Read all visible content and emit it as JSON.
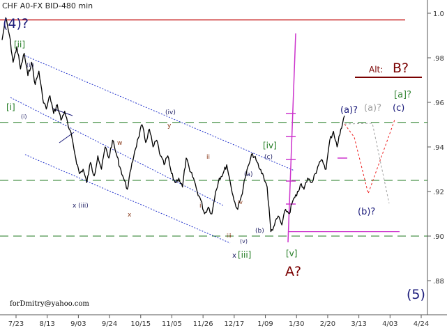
{
  "header": {
    "title": "CHF A0-FX BID-480 min"
  },
  "footer": {
    "email": "forDmitry@yahoo.com"
  },
  "colors": {
    "price": "#000000",
    "green": "#1f7a1f",
    "navy": "#1a1a7a",
    "red": "#c00000",
    "darkred": "#7a0000",
    "magenta": "#cc33cc",
    "blue_dotted": "#2233cc",
    "gray": "#a0a0a0",
    "wave_small": "#222266",
    "wave_brown": "#8a3a1a"
  },
  "chart_data": {
    "type": "line",
    "title": "CHF A0-FX BID-480 min",
    "xlabel": "",
    "ylabel": "",
    "ylim": [
      0.865,
      1.005
    ],
    "y_ticks": [
      "1.0",
      ".98",
      ".96",
      ".94",
      ".92",
      ".90",
      ".88"
    ],
    "x_ticks": [
      "7/23",
      "8/13",
      "9/03",
      "9/24",
      "10/15",
      "11/05",
      "11/26",
      "12/17",
      "1/09",
      "1/30",
      "2/20",
      "3/13",
      "4/03",
      "4/24"
    ],
    "grid": false,
    "series": [
      {
        "values": [
          0.988,
          0.998,
          0.99,
          0.978,
          0.985,
          0.975,
          0.982,
          0.972,
          0.978,
          0.968,
          0.974,
          0.962,
          0.957,
          0.963,
          0.955,
          0.959,
          0.952,
          0.956,
          0.949,
          0.944,
          0.935,
          0.928,
          0.93,
          0.924,
          0.933,
          0.927,
          0.936,
          0.93,
          0.94,
          0.935,
          0.943,
          0.937,
          0.931,
          0.926,
          0.921,
          0.93,
          0.938,
          0.944,
          0.95,
          0.942,
          0.948,
          0.94,
          0.943,
          0.936,
          0.932,
          0.936,
          0.928,
          0.924,
          0.926,
          0.922,
          0.935,
          0.929,
          0.926,
          0.92,
          0.916,
          0.91,
          0.913,
          0.91,
          0.92,
          0.926,
          0.928,
          0.932,
          0.924,
          0.916,
          0.912,
          0.918,
          0.926,
          0.932,
          0.937,
          0.934,
          0.93,
          0.927,
          0.922,
          0.902,
          0.905,
          0.909,
          0.905,
          0.912,
          0.91,
          0.916,
          0.918,
          0.923,
          0.921,
          0.926,
          0.924,
          0.928,
          0.932,
          0.934,
          0.93,
          0.943,
          0.947,
          0.94,
          0.948,
          0.954
        ]
      }
    ],
    "horizontal_lines": [
      {
        "value": 0.997,
        "style": "solid",
        "color": "red"
      },
      {
        "value": 0.951,
        "style": "dashed",
        "color": "green"
      },
      {
        "value": 0.925,
        "style": "dashed",
        "color": "green"
      },
      {
        "value": 0.9,
        "style": "dashed",
        "color": "green"
      },
      {
        "value": 0.902,
        "style": "solid",
        "color": "magenta"
      }
    ],
    "annotations": [
      "(4)?",
      "[ii]",
      "(ii)",
      "[i]",
      "(i)",
      "(iv)",
      "y",
      "w",
      "x (iii)",
      "x",
      "ii",
      "i",
      "iii",
      "iv",
      "(v)",
      "x",
      "[iii]",
      "(a)",
      "(b)",
      "(c)",
      "[iv]",
      "[v]",
      "A?",
      "Alt:",
      "B?",
      "(a)?",
      "(a)?",
      "(c)",
      "[a]?",
      "(b)?",
      "(5)"
    ]
  }
}
